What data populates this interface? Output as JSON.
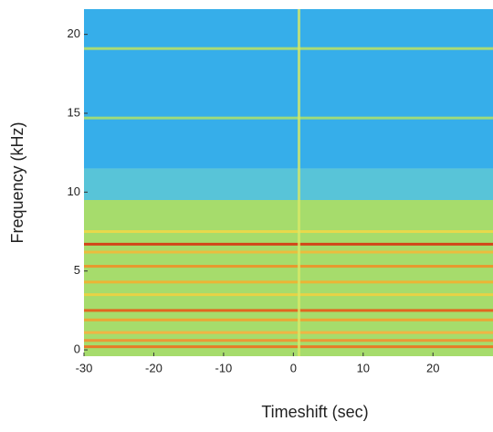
{
  "chart_data": {
    "type": "heatmap",
    "xlabel": "Timeshift (sec)",
    "ylabel": "Frequency (kHz)",
    "xlim": [
      -30,
      28.6
    ],
    "ylim": [
      -0.4,
      21.6
    ],
    "xticks": [
      -30,
      -20,
      -10,
      0,
      10,
      20
    ],
    "yticks": [
      0,
      5,
      10,
      15,
      20
    ],
    "regions": [
      {
        "from": -0.4,
        "to": 9.5,
        "color": "#a6dc6c"
      },
      {
        "from": 9.5,
        "to": 11.5,
        "color": "#58c4d8"
      },
      {
        "from": 11.5,
        "to": 21.6,
        "color": "#36aeea"
      }
    ],
    "bands": [
      {
        "y": 0.2,
        "color": "#f07020"
      },
      {
        "y": 0.6,
        "color": "#f49030"
      },
      {
        "y": 1.1,
        "color": "#f8b040"
      },
      {
        "y": 1.9,
        "color": "#f4a030"
      },
      {
        "y": 2.5,
        "color": "#e85a18"
      },
      {
        "y": 3.5,
        "color": "#f0d040"
      },
      {
        "y": 4.3,
        "color": "#f4b030"
      },
      {
        "y": 5.3,
        "color": "#f09028"
      },
      {
        "y": 6.2,
        "color": "#f4b838"
      },
      {
        "y": 6.7,
        "color": "#d83410"
      },
      {
        "y": 7.5,
        "color": "#f0d848"
      },
      {
        "y": 14.7,
        "color": "#a8e070"
      },
      {
        "y": 19.1,
        "color": "#b8e068"
      }
    ],
    "vline": {
      "x": 0.8,
      "color": "#d8e868"
    }
  }
}
